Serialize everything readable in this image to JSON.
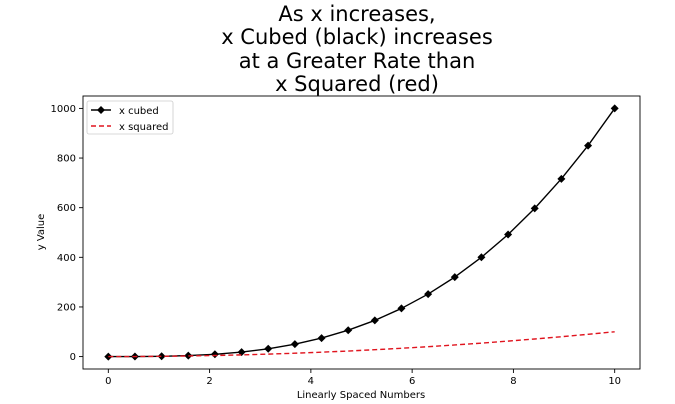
{
  "chart_data": {
    "type": "line",
    "title_lines": [
      "As x increases,",
      "x Cubed (black) increases",
      "at a Greater Rate than",
      "x Squared (red)"
    ],
    "xlabel": "Linearly Spaced Numbers",
    "ylabel": "y Value",
    "xlim": [
      -0.5,
      10.5
    ],
    "ylim": [
      -50,
      1050
    ],
    "xticks": [
      0,
      2,
      4,
      6,
      8,
      10
    ],
    "yticks": [
      0,
      200,
      400,
      600,
      800,
      1000
    ],
    "grid": false,
    "legend_position": "upper-left",
    "x": [
      0,
      0.526,
      1.053,
      1.579,
      2.105,
      2.632,
      3.158,
      3.684,
      4.211,
      4.737,
      5.263,
      5.789,
      6.316,
      6.842,
      7.368,
      7.895,
      8.421,
      8.947,
      9.474,
      10
    ],
    "series": [
      {
        "name": "x cubed",
        "color": "#000000",
        "line_style": "solid",
        "marker": "diamond",
        "values": [
          0,
          0.15,
          1.17,
          3.94,
          9.33,
          18.22,
          31.49,
          50.01,
          74.65,
          106.29,
          145.8,
          194.06,
          251.93,
          320.3,
          400.06,
          492.08,
          597.2,
          716.31,
          850.28,
          1000
        ]
      },
      {
        "name": "x squared",
        "color": "#e0141e",
        "line_style": "dashed",
        "marker": "none",
        "values": [
          0,
          0.28,
          1.11,
          2.49,
          4.43,
          6.93,
          9.97,
          13.57,
          17.73,
          22.44,
          27.7,
          33.51,
          39.89,
          46.81,
          54.29,
          62.33,
          70.91,
          80.05,
          89.75,
          100
        ]
      }
    ]
  }
}
